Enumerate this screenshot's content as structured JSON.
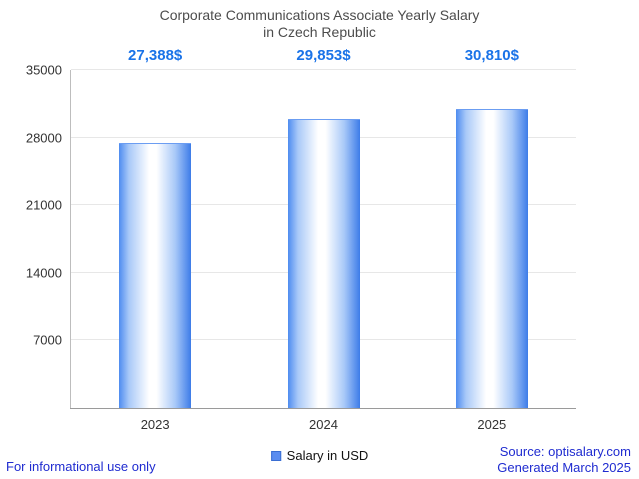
{
  "title": {
    "line1": "Corporate Communications Associate Yearly Salary",
    "line2": "in Czech Republic"
  },
  "chart_data": {
    "type": "bar",
    "title": "Corporate Communications Associate Yearly Salary in Czech Republic",
    "categories": [
      "2023",
      "2024",
      "2025"
    ],
    "values": [
      27388,
      29853,
      30810
    ],
    "value_labels": [
      "27,388$",
      "29,853$",
      "30,810$"
    ],
    "series": [
      {
        "name": "Salary in USD",
        "values": [
          27388,
          29853,
          30810
        ]
      }
    ],
    "xlabel": "",
    "ylabel": "",
    "ylim": [
      0,
      35000
    ],
    "yticks": [
      7000,
      14000,
      21000,
      28000,
      35000
    ],
    "grid": true,
    "legend_position": "bottom"
  },
  "legend": {
    "label": "Salary in USD"
  },
  "footer": {
    "disclaimer": "For informational use only",
    "source": "Source: optisalary.com",
    "generated": "Generated March 2025"
  },
  "colors": {
    "value_label_blue": "#1a73e8",
    "footer_blue": "#1f2bd0",
    "bar_edge_blue": "#4e8cf0",
    "bar_center": "#ffffff",
    "title_gray": "#4c4c4c",
    "gridline_gray": "#e7e7e7",
    "axis_gray": "#9a9a9a"
  }
}
